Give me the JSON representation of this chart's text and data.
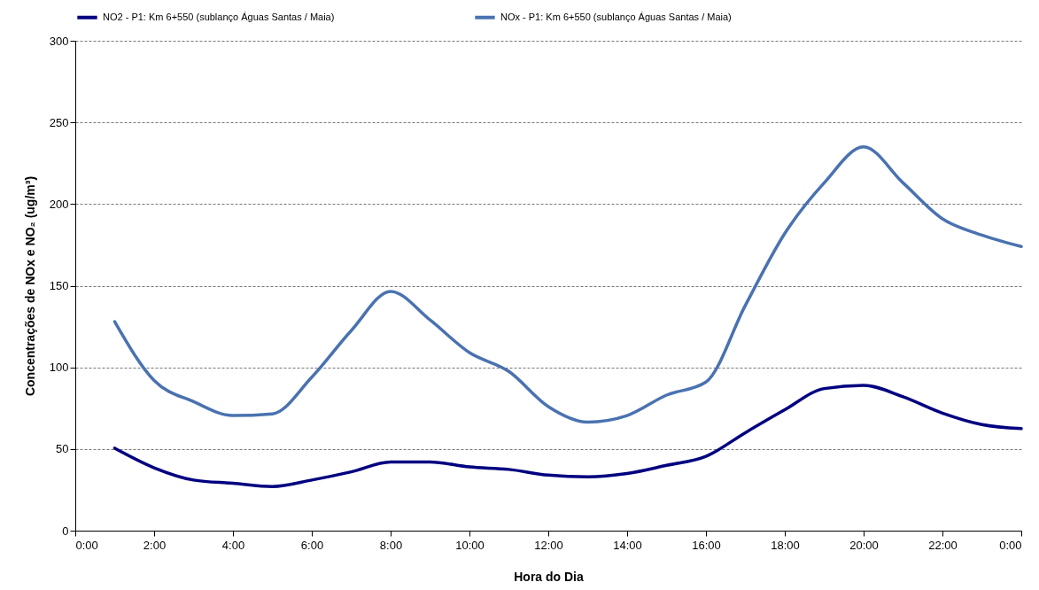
{
  "chart_data": {
    "type": "line",
    "xlabel": "Hora do Dia",
    "ylabel": "Concentrações de NOx e NO₂ (ug/m³)",
    "x": [
      1,
      2,
      3,
      4,
      5,
      6,
      7,
      8,
      9,
      10,
      11,
      12,
      13,
      14,
      15,
      16,
      17,
      18,
      19,
      20,
      21,
      22,
      23,
      24
    ],
    "series": [
      {
        "name": "NO2 - P1: Km 6+550 (sublanço Águas Santas / Maia)",
        "color": "#000080",
        "values": [
          50.5,
          38.5,
          31,
          29,
          27,
          31,
          36,
          42,
          42,
          39,
          37.5,
          34,
          33,
          35,
          40,
          45.5,
          60,
          74,
          87,
          89,
          82,
          72,
          65,
          62.5
        ]
      },
      {
        "name": "NOx - P1: Km 6+550 (sublanço Águas Santas / Maia)",
        "color": "#4a72b0",
        "values": [
          128,
          92,
          79,
          70.5,
          71.5,
          94,
          122.5,
          146.5,
          129,
          109,
          97.5,
          76,
          66.5,
          70.5,
          83,
          91,
          138,
          182,
          213,
          235,
          213,
          191,
          181,
          174
        ]
      }
    ],
    "xlim": [
      0,
      24
    ],
    "xticks": [
      {
        "value": 0,
        "label": "0:00"
      },
      {
        "value": 2,
        "label": "2:00"
      },
      {
        "value": 4,
        "label": "4:00"
      },
      {
        "value": 6,
        "label": "6:00"
      },
      {
        "value": 8,
        "label": "8:00"
      },
      {
        "value": 10,
        "label": "10:00"
      },
      {
        "value": 12,
        "label": "12:00"
      },
      {
        "value": 14,
        "label": "14:00"
      },
      {
        "value": 16,
        "label": "16:00"
      },
      {
        "value": 18,
        "label": "18:00"
      },
      {
        "value": 20,
        "label": "20:00"
      },
      {
        "value": 22,
        "label": "22:00"
      },
      {
        "value": 24,
        "label": "0:00"
      }
    ],
    "ylim": [
      0,
      300
    ],
    "yticks": [
      0,
      50,
      100,
      150,
      200,
      250,
      300
    ],
    "grid": "y",
    "legend": "top",
    "marker": "none",
    "line_style": "solid"
  }
}
